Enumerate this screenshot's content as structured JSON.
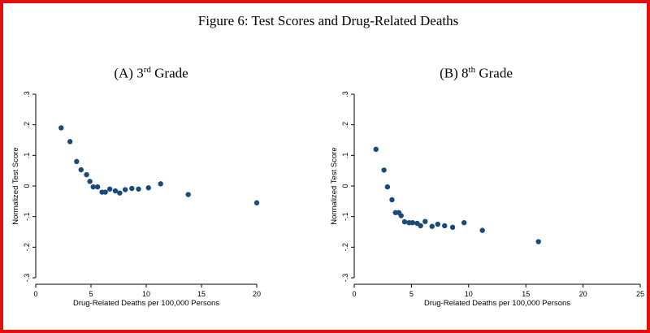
{
  "figure_title": "Figure 6: Test Scores and Drug-Related Deaths",
  "colors": {
    "frame": "#e01010",
    "marker": "#1a4a78",
    "axis": "#000000"
  },
  "chart_data": [
    {
      "type": "scatter",
      "title_prefix": "(A) 3",
      "title_sup": "rd",
      "title_suffix": " Grade",
      "xlabel": "Drug-Related Deaths per 100,000 Persons",
      "ylabel": "Normalized Test Score",
      "xlim": [
        0,
        20
      ],
      "ylim": [
        -0.3,
        0.3
      ],
      "xticks": [
        0,
        5,
        10,
        15,
        20
      ],
      "yticks": [
        -0.3,
        -0.2,
        -0.1,
        0,
        0.1,
        0.2,
        0.3
      ],
      "xtick_labels": [
        "0",
        "5",
        "10",
        "15",
        "20"
      ],
      "ytick_labels": [
        "-.3",
        "-.2",
        "-.1",
        "0",
        ".1",
        ".2",
        ".3"
      ],
      "grid": false,
      "x": [
        2.3,
        3.1,
        3.7,
        4.1,
        4.6,
        4.9,
        5.2,
        5.6,
        6.0,
        6.3,
        6.7,
        7.2,
        7.6,
        8.1,
        8.7,
        9.3,
        10.2,
        11.3,
        13.8,
        20.0
      ],
      "y": [
        0.19,
        0.145,
        0.08,
        0.053,
        0.037,
        0.015,
        -0.003,
        -0.003,
        -0.02,
        -0.02,
        -0.01,
        -0.016,
        -0.023,
        -0.012,
        -0.008,
        -0.01,
        -0.006,
        0.007,
        -0.028,
        -0.055
      ]
    },
    {
      "type": "scatter",
      "title_prefix": "(B) 8",
      "title_sup": "th",
      "title_suffix": " Grade",
      "xlabel": "Drug-Related Deaths per 100,000 Persons",
      "ylabel": "Normalized Test Score",
      "xlim": [
        0,
        25
      ],
      "ylim": [
        -0.3,
        0.3
      ],
      "xticks": [
        0,
        5,
        10,
        15,
        20,
        25
      ],
      "yticks": [
        -0.3,
        -0.2,
        -0.1,
        0,
        0.1,
        0.2,
        0.3
      ],
      "xtick_labels": [
        "0",
        "5",
        "10",
        "15",
        "20",
        "25"
      ],
      "ytick_labels": [
        "-.3",
        "-.2",
        "-.1",
        "0",
        ".1",
        ".2",
        ".3"
      ],
      "grid": false,
      "x": [
        1.9,
        2.6,
        2.9,
        3.3,
        3.6,
        3.9,
        4.1,
        4.4,
        4.8,
        5.1,
        5.5,
        5.8,
        6.2,
        6.8,
        7.3,
        7.9,
        8.6,
        9.6,
        11.2,
        16.1
      ],
      "y": [
        0.12,
        0.052,
        -0.003,
        -0.045,
        -0.087,
        -0.087,
        -0.097,
        -0.117,
        -0.12,
        -0.12,
        -0.122,
        -0.13,
        -0.116,
        -0.132,
        -0.125,
        -0.13,
        -0.135,
        -0.12,
        -0.145,
        -0.182
      ]
    }
  ]
}
